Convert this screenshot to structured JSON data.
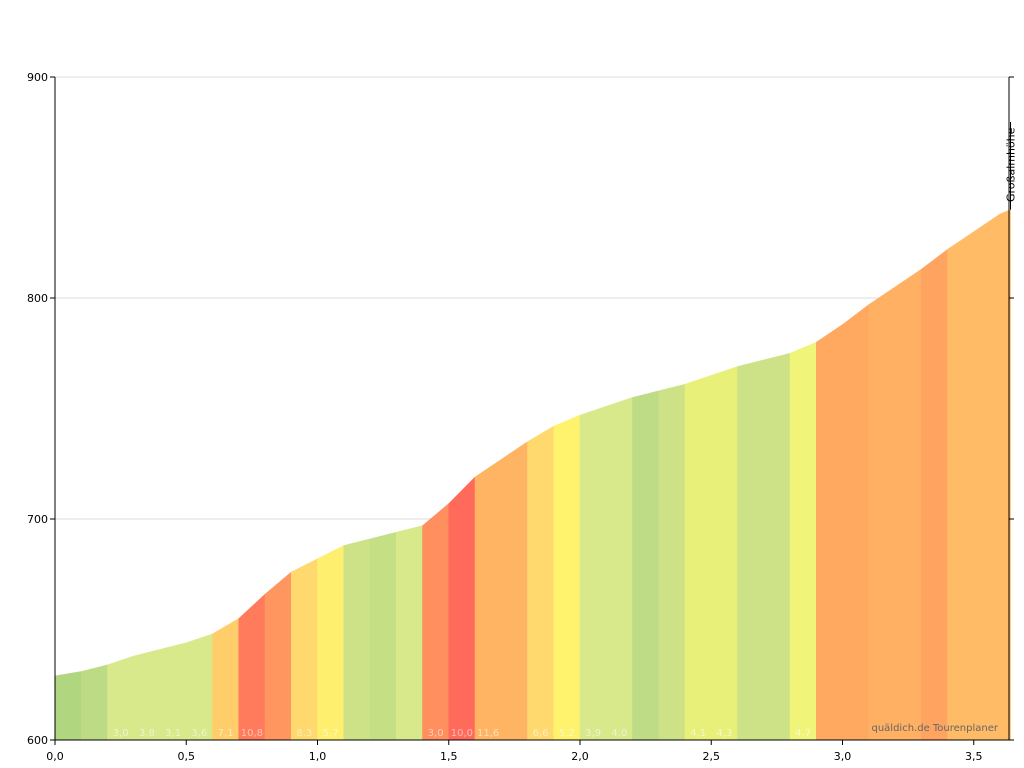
{
  "chart_data": {
    "type": "area",
    "title": "",
    "xlabel": "",
    "ylabel": "",
    "xlim": [
      0,
      3.65
    ],
    "ylim": [
      600,
      900
    ],
    "x_ticks": [
      "0,0",
      "0,5",
      "1,0",
      "1,5",
      "2,0",
      "2,5",
      "3,0",
      "3,5"
    ],
    "y_ticks": [
      "600",
      "700",
      "800",
      "900"
    ],
    "grid": "horizontal",
    "x": [
      0.0,
      0.1,
      0.2,
      0.3,
      0.4,
      0.5,
      0.6,
      0.7,
      0.8,
      0.9,
      1.0,
      1.1,
      1.2,
      1.3,
      1.4,
      1.5,
      1.6,
      1.7,
      1.8,
      1.9,
      2.0,
      2.1,
      2.2,
      2.3,
      2.4,
      2.5,
      2.6,
      2.7,
      2.8,
      2.9,
      3.0,
      3.1,
      3.2,
      3.3,
      3.4,
      3.5,
      3.6,
      3.64
    ],
    "elevation": [
      629,
      631,
      634,
      638,
      641,
      644,
      648,
      655,
      666,
      676,
      682,
      688,
      691,
      694,
      697,
      707,
      719,
      727,
      735,
      742,
      747,
      751,
      755,
      758,
      761,
      765,
      769,
      772,
      775,
      780,
      788,
      797,
      805,
      813,
      822,
      830,
      838,
      840
    ],
    "segment_colors": [
      "#b0d680",
      "#bddb85",
      "#d7e98a",
      "#d7e98a",
      "#d7e98a",
      "#d7e98a",
      "#ffce6b",
      "#ff7b5c",
      "#ff9660",
      "#ffd96e",
      "#ffef6e",
      "#cde286",
      "#c4df84",
      "#d7e98a",
      "#ff8f5f",
      "#ff6a5b",
      "#ffb463",
      "#ffb463",
      "#ffd96e",
      "#fff36e",
      "#d7e98a",
      "#d7e98a",
      "#bedb85",
      "#cde286",
      "#e8f07a",
      "#e8f07a",
      "#cde286",
      "#cde286",
      "#f0f57a",
      "#ffa860",
      "#ffa860",
      "#ffb063",
      "#ffb063",
      "#ffa460",
      "#ffbb66",
      "#ffbb66",
      "#ffbb66"
    ],
    "grade_labels": [
      "",
      "",
      "3,0",
      "3,8",
      "3,1",
      "3,6",
      "7,1",
      "10,8",
      "",
      "8,3",
      "5,7",
      "",
      "",
      "",
      "3,0",
      "10,0",
      "11,6",
      "",
      "6,6",
      "5,2",
      "3,9",
      "4,0",
      "",
      "",
      "4,1",
      "4,3",
      "",
      "",
      "4,7",
      "",
      "",
      "",
      "",
      "",
      "",
      "",
      ""
    ],
    "annotations": [
      {
        "text": "Großalmhöhe",
        "x": 3.64
      }
    ],
    "credit": "quäldich.de Tourenplaner"
  }
}
